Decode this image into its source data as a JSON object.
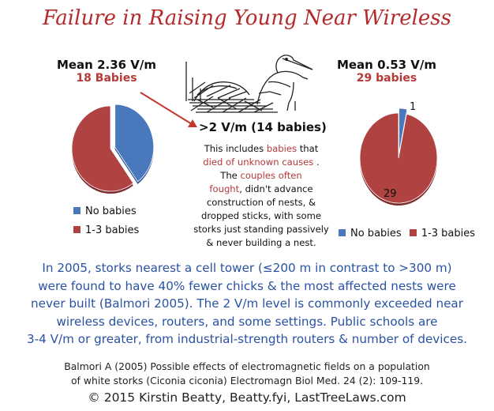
{
  "title": "Failure in Raising Young Near Wireless",
  "left": {
    "mean": "Mean 2.36 V/m",
    "babies": "18 Babies",
    "threshold": ">2 V/m (14 babies)"
  },
  "right": {
    "mean": "Mean 0.53 V/m",
    "babies": "29 babies"
  },
  "description": {
    "l1a": "This includes ",
    "l1b": "babies",
    "l1c": " that",
    "l2a": "died of unknown causes",
    "l2b": " .",
    "l3a": "The ",
    "l3b": "couples often",
    "l4a": "fought",
    "l4b": ", didn't advance",
    "l5": "construction of nests, &",
    "l6": "dropped sticks, with some",
    "l7": "storks just standing passively",
    "l8": "& never building a nest."
  },
  "body_text": [
    "In 2005, storks nearest a cell tower (≤200 m in contrast to >300 m)",
    "were found to have 40% fewer chicks & the most affected nests were",
    "never built (Balmori 2005). The 2 V/m level is commonly exceeded near",
    "wireless devices, routers, and some settings. Public schools are",
    "3-4 V/m or greater, from industrial-strength routers & number of devices."
  ],
  "citation": [
    "Balmori A (2005) Possible effects of electromagnetic fields on a population",
    "of white storks (Ciconia ciconia) Electromagn Biol Med. 24 (2): 109-119."
  ],
  "copyright": "© 2015 Kirstin Beatty, Beatty.fyi, LastTreeLaws.com",
  "colors": {
    "no_babies": "#4a78bd",
    "babies_1_3": "#b04242",
    "title": "#b52a2a",
    "body_text": "#2a52a3"
  },
  "chart_data": [
    {
      "type": "pie",
      "title": "Mean 2.36 V/m",
      "subtitle": "18 Babies",
      "categories": [
        "No babies",
        "1-3 babies"
      ],
      "values": [
        40,
        60
      ],
      "legend": "bottom",
      "legend_labels": [
        "No babies",
        "1-3 babies"
      ]
    },
    {
      "type": "pie",
      "title": "Mean 0.53 V/m",
      "subtitle": "29 babies",
      "categories": [
        "No babies",
        "1-3 babies"
      ],
      "values": [
        1,
        29
      ],
      "data_labels": [
        "1",
        "29"
      ],
      "legend": "bottom",
      "legend_labels": [
        "No babies",
        "1-3 babies"
      ]
    }
  ]
}
